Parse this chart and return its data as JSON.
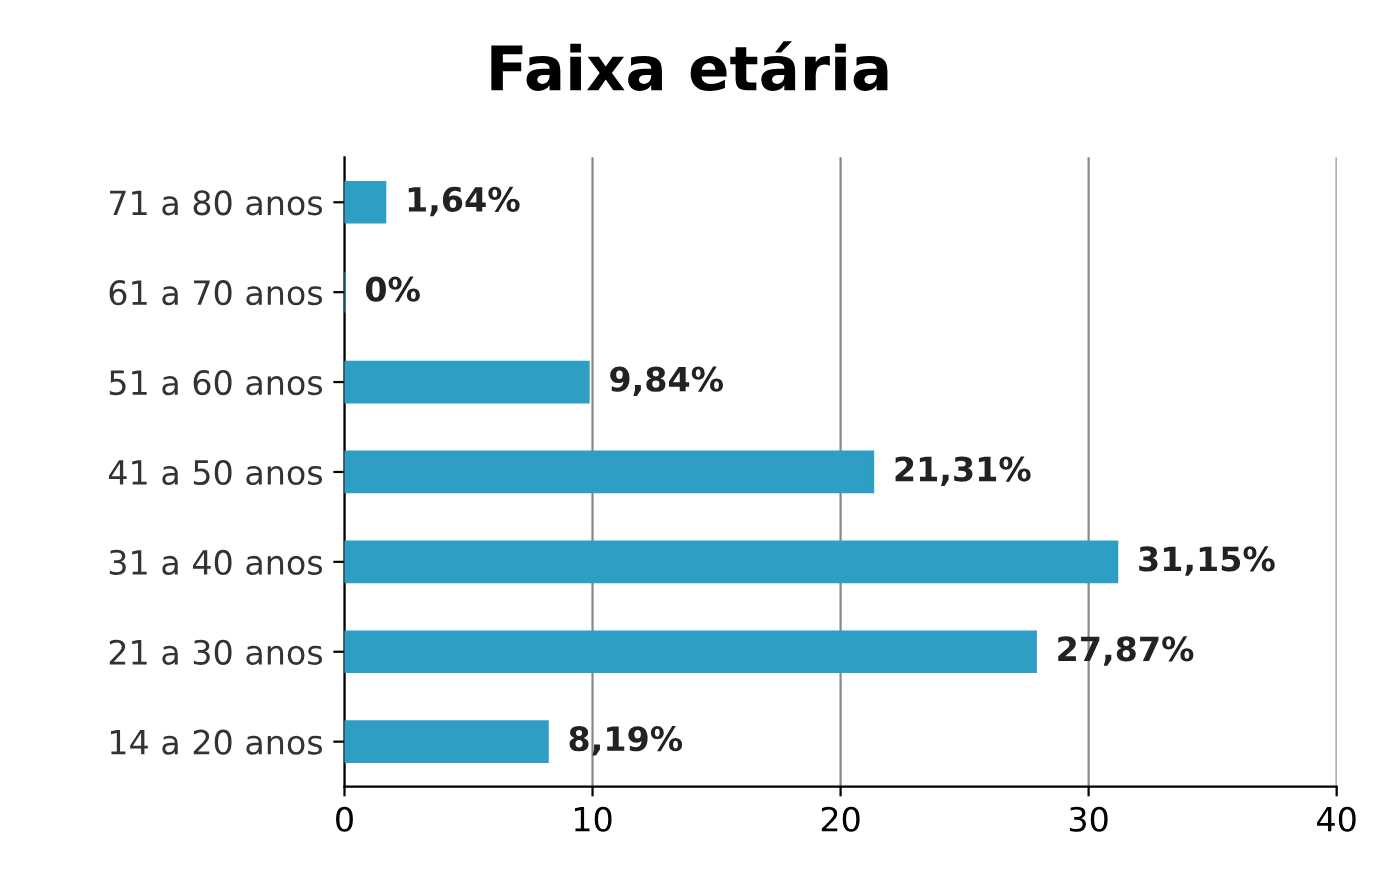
{
  "chart_data": {
    "type": "bar",
    "orientation": "horizontal",
    "title": "Faixa etária",
    "categories": [
      "71 a 80 anos",
      "61 a 70 anos",
      "51 a 60 anos",
      "41 a 50 anos",
      "31 a 40 anos",
      "21 a 30 anos",
      "14 a 20 anos"
    ],
    "values": [
      1.64,
      0,
      9.84,
      21.31,
      31.15,
      27.87,
      8.19
    ],
    "value_labels": [
      "1,64%",
      "0%",
      "9,84%",
      "21,31%",
      "31,15%",
      "27,87%",
      "8,19%"
    ],
    "color": "#2e9ec4",
    "xlim": [
      0,
      40
    ],
    "xticks": [
      0,
      10,
      20,
      30,
      40
    ],
    "grid": "x"
  }
}
